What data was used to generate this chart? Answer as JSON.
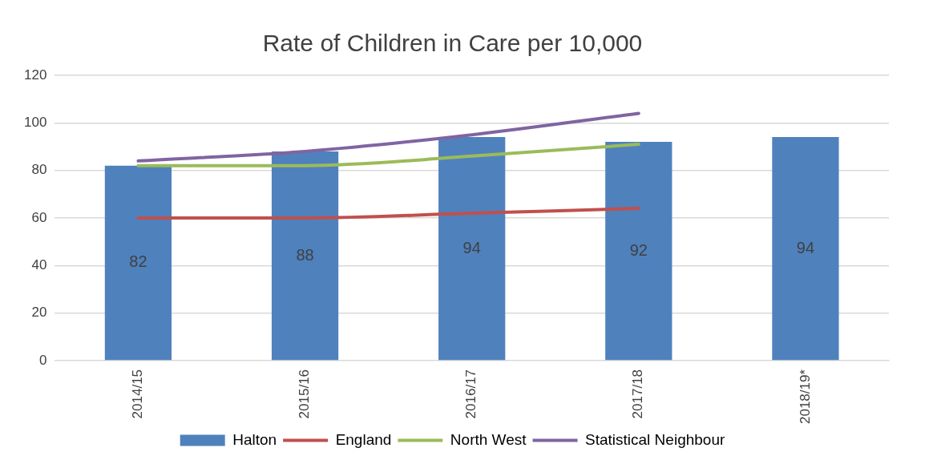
{
  "chart_data": {
    "type": "bar",
    "title": "Rate of Children in Care per 10,000",
    "categories": [
      "2014/15",
      "2015/16",
      "2016/17",
      "2017/18",
      "2018/19*"
    ],
    "series": [
      {
        "name": "Halton",
        "color": "#4f81bd",
        "values": [
          82,
          88,
          94,
          92,
          94
        ],
        "value_labels": [
          "82",
          "88",
          "94",
          "92",
          "94"
        ]
      },
      {
        "name": "England",
        "type": "line",
        "color": "#c0504d",
        "values": [
          60,
          60,
          62,
          64,
          null
        ]
      },
      {
        "name": "North West",
        "type": "line",
        "color": "#9bbb59",
        "values": [
          82,
          82,
          86,
          91,
          null
        ]
      },
      {
        "name": "Statistical Neighbour",
        "type": "line",
        "color": "#8064a2",
        "values": [
          84,
          88,
          95,
          104,
          null
        ]
      }
    ],
    "ylim": [
      0,
      120
    ],
    "yticks": [
      0,
      20,
      40,
      60,
      80,
      100,
      120
    ],
    "grid": "y",
    "legend": "bottom",
    "marker": "none"
  }
}
